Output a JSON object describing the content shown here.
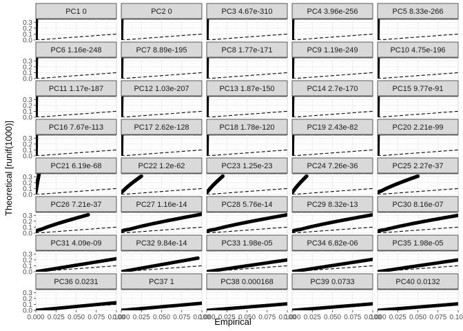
{
  "chart_data": {
    "type": "scatter",
    "layout": "facet_grid",
    "xlabel": "Empirical",
    "ylabel": "Theoretical [runif(1000)]",
    "xlim": [
      0,
      0.1
    ],
    "ylim": [
      0,
      0.35
    ],
    "x_ticks": [
      0.0,
      0.025,
      0.05,
      0.075,
      0.1
    ],
    "x_tick_labels": [
      "0.000",
      "0.025",
      "0.050",
      "0.075",
      "0.100"
    ],
    "y_ticks": [
      0.0,
      0.1,
      0.2,
      0.3
    ],
    "y_tick_labels": [
      "0.0",
      "0.1",
      "0.2",
      "0.3"
    ],
    "reference_line": {
      "slope": 1,
      "intercept": 0,
      "style": "dashed"
    },
    "grid": true,
    "panels": [
      {
        "label": "PC1 0",
        "x_end": 0.0015,
        "y_end": 1.0,
        "shape": "wall"
      },
      {
        "label": "PC2 0",
        "x_end": 0.0015,
        "y_end": 1.0,
        "shape": "wall"
      },
      {
        "label": "PC3 4.67e-310",
        "x_end": 0.0015,
        "y_end": 1.0,
        "shape": "wall"
      },
      {
        "label": "PC4 3.96e-256",
        "x_end": 0.0015,
        "y_end": 1.0,
        "shape": "wall"
      },
      {
        "label": "PC5 8.33e-266",
        "x_end": 0.0015,
        "y_end": 1.0,
        "shape": "wall"
      },
      {
        "label": "PC6 1.16e-248",
        "x_end": 0.0015,
        "y_end": 1.0,
        "shape": "wall"
      },
      {
        "label": "PC7 8.89e-195",
        "x_end": 0.0015,
        "y_end": 1.0,
        "shape": "wall"
      },
      {
        "label": "PC8 1.77e-171",
        "x_end": 0.0015,
        "y_end": 1.0,
        "shape": "wall"
      },
      {
        "label": "PC9 1.19e-249",
        "x_end": 0.0015,
        "y_end": 1.0,
        "shape": "wall"
      },
      {
        "label": "PC10 4.75e-196",
        "x_end": 0.0015,
        "y_end": 1.0,
        "shape": "wall"
      },
      {
        "label": "PC11 1.17e-187",
        "x_end": 0.0015,
        "y_end": 1.0,
        "shape": "wall"
      },
      {
        "label": "PC12 1.03e-207",
        "x_end": 0.0015,
        "y_end": 1.0,
        "shape": "wall"
      },
      {
        "label": "PC13 1.87e-150",
        "x_end": 0.0015,
        "y_end": 1.0,
        "shape": "wall"
      },
      {
        "label": "PC14 2.7e-170",
        "x_end": 0.0015,
        "y_end": 1.0,
        "shape": "wall"
      },
      {
        "label": "PC15 9.77e-91",
        "x_end": 0.0015,
        "y_end": 1.0,
        "shape": "wall"
      },
      {
        "label": "PC16 7.67e-113",
        "x_end": 0.0015,
        "y_end": 1.0,
        "shape": "wall"
      },
      {
        "label": "PC17 2.62e-128",
        "x_end": 0.0015,
        "y_end": 1.0,
        "shape": "wall"
      },
      {
        "label": "PC18 1.78e-120",
        "x_end": 0.0015,
        "y_end": 1.0,
        "shape": "wall"
      },
      {
        "label": "PC19 2.43e-82",
        "x_end": 0.0015,
        "y_end": 1.0,
        "shape": "wall"
      },
      {
        "label": "PC20 2.21e-99",
        "x_end": 0.0015,
        "y_end": 1.0,
        "shape": "wall"
      },
      {
        "label": "PC21 6.19e-68",
        "x_end": 0.004,
        "y_end": 0.35,
        "shape": "curve"
      },
      {
        "label": "PC22 1.2e-62",
        "x_end": 0.025,
        "y_end": 0.31,
        "shape": "curve"
      },
      {
        "label": "PC23 1.25e-23",
        "x_end": 0.02,
        "y_end": 0.31,
        "shape": "curve"
      },
      {
        "label": "PC24 7.26e-36",
        "x_end": 0.018,
        "y_end": 0.31,
        "shape": "curve"
      },
      {
        "label": "PC25 2.27e-37",
        "x_end": 0.05,
        "y_end": 0.31,
        "shape": "curve"
      },
      {
        "label": "PC26 7.21e-37",
        "x_end": 0.065,
        "y_end": 0.31,
        "shape": "curve"
      },
      {
        "label": "PC27 1.16e-14",
        "x_end": 0.1,
        "y_end": 0.32,
        "shape": "curve"
      },
      {
        "label": "PC28 5.76e-14",
        "x_end": 0.1,
        "y_end": 0.31,
        "shape": "curve"
      },
      {
        "label": "PC29 8.32e-13",
        "x_end": 0.1,
        "y_end": 0.31,
        "shape": "curve"
      },
      {
        "label": "PC30 8.16e-07",
        "x_end": 0.1,
        "y_end": 0.3,
        "shape": "curve"
      },
      {
        "label": "PC31 4.09e-09",
        "x_end": 0.1,
        "y_end": 0.22,
        "shape": "linear"
      },
      {
        "label": "PC32 9.84e-14",
        "x_end": 0.095,
        "y_end": 0.23,
        "shape": "linear"
      },
      {
        "label": "PC33 1.98e-05",
        "x_end": 0.1,
        "y_end": 0.2,
        "shape": "linear"
      },
      {
        "label": "PC34 6.82e-06",
        "x_end": 0.1,
        "y_end": 0.21,
        "shape": "linear"
      },
      {
        "label": "PC35 1.98e-05",
        "x_end": 0.1,
        "y_end": 0.2,
        "shape": "linear"
      },
      {
        "label": "PC36 0.0231",
        "x_end": 0.1,
        "y_end": 0.13,
        "shape": "linear"
      },
      {
        "label": "PC37 1",
        "x_end": 0.1,
        "y_end": 0.12,
        "shape": "linear"
      },
      {
        "label": "PC38 0.000168",
        "x_end": 0.1,
        "y_end": 0.11,
        "shape": "linear"
      },
      {
        "label": "PC39 0.0733",
        "x_end": 0.1,
        "y_end": 0.11,
        "shape": "linear"
      },
      {
        "label": "PC40 0.0132",
        "x_end": 0.1,
        "y_end": 0.11,
        "shape": "linear"
      }
    ]
  }
}
